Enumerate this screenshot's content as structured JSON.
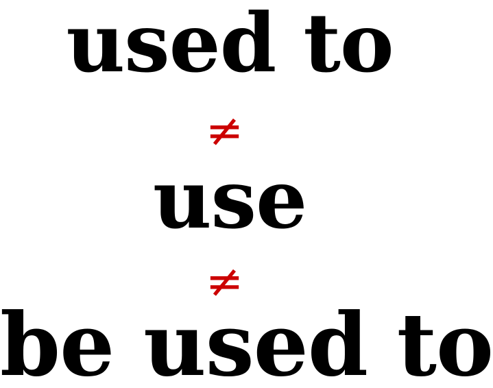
{
  "phrases": {
    "first": "used to",
    "second": "use",
    "third": "be used to"
  },
  "symbols": {
    "not_equal_1": "≠",
    "not_equal_2": "≠"
  },
  "colors": {
    "text": "#000000",
    "symbol": "#cc0000",
    "background": "#ffffff"
  }
}
